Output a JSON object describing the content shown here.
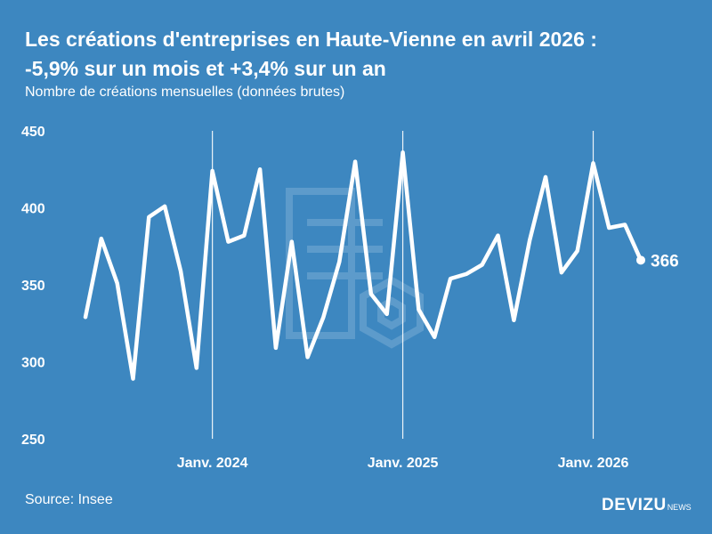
{
  "header": {
    "title_line1": "Les créations d'entreprises en Haute-Vienne en avril 2026 :",
    "title_line2": "-5,9% sur un mois et +3,4% sur un an",
    "subtitle": "Nombre de créations mensuelles (données brutes)"
  },
  "footer": {
    "source": "Source: Insee",
    "brand": "DEVIZU",
    "brand_suffix": "NEWS"
  },
  "chart_data": {
    "type": "line",
    "title": "Les créations d'entreprises en Haute-Vienne en avril 2026 : -5,9% sur un mois et +3,4% sur un an",
    "subtitle": "Nombre de créations mensuelles (données brutes)",
    "ylim": [
      250,
      450
    ],
    "y_ticks": [
      450,
      400,
      350,
      300,
      250
    ],
    "x_ticks": [
      {
        "label": "Janv. 2024",
        "x": "2024-01"
      },
      {
        "label": "Janv. 2025",
        "x": "2025-01"
      },
      {
        "label": "Janv. 2026",
        "x": "2026-01"
      }
    ],
    "grid": "vertical lines at January",
    "end_label": "366",
    "series": [
      {
        "x": [
          "2023-05",
          "2023-06",
          "2023-07",
          "2023-08",
          "2023-09",
          "2023-10",
          "2023-11",
          "2023-12",
          "2024-01",
          "2024-02",
          "2024-03",
          "2024-04",
          "2024-05",
          "2024-06",
          "2024-07",
          "2024-08",
          "2024-09",
          "2024-10",
          "2024-11",
          "2024-12",
          "2025-01",
          "2025-02",
          "2025-03",
          "2025-04",
          "2025-05",
          "2025-06",
          "2025-07",
          "2025-08",
          "2025-09",
          "2025-10",
          "2025-11",
          "2025-12",
          "2026-01",
          "2026-02",
          "2026-03",
          "2026-04"
        ],
        "values": [
          329,
          380,
          351,
          289,
          394,
          401,
          359,
          296,
          424,
          378,
          382,
          425,
          309,
          378,
          303,
          329,
          365,
          430,
          344,
          331,
          436,
          334,
          316,
          354,
          357,
          363,
          382,
          327,
          379,
          420,
          358,
          372,
          429,
          387,
          389,
          366
        ]
      }
    ]
  }
}
